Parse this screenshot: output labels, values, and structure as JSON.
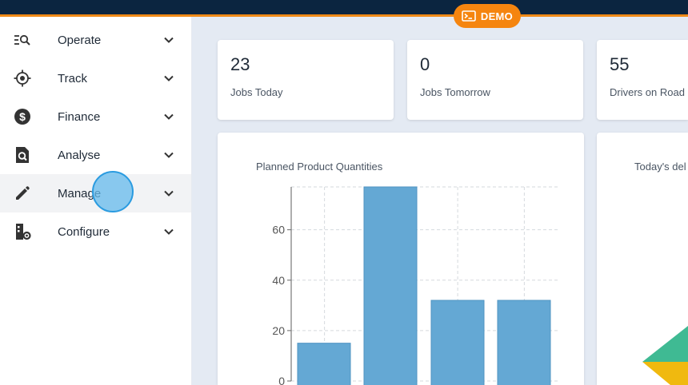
{
  "header": {
    "demo_label": "DEMO"
  },
  "sidebar": {
    "items": [
      {
        "label": "Operate",
        "icon": "operate-search-icon"
      },
      {
        "label": "Track",
        "icon": "crosshair-icon"
      },
      {
        "label": "Finance",
        "icon": "dollar-icon"
      },
      {
        "label": "Analyse",
        "icon": "analyse-icon"
      },
      {
        "label": "Manage",
        "icon": "pencil-icon"
      },
      {
        "label": "Configure",
        "icon": "configure-icon"
      }
    ],
    "active_item": "Manage"
  },
  "stats": [
    {
      "value": "23",
      "label": "Jobs Today"
    },
    {
      "value": "0",
      "label": "Jobs Tomorrow"
    },
    {
      "value": "55",
      "label": "Drivers on Road"
    }
  ],
  "pie_card": {
    "title": "Today's del"
  },
  "colors": {
    "bar": "#64a8d4",
    "accent": "#f5850f",
    "topbar": "#0b2540",
    "pie_green": "#3fba93",
    "pie_yellow": "#f0b90f"
  },
  "chart_data": {
    "type": "bar",
    "title": "Planned Product Quantities",
    "categories": [
      "",
      "",
      "",
      ""
    ],
    "values": [
      15,
      77,
      32,
      32
    ],
    "ylim": [
      0,
      77
    ],
    "yticks": [
      0,
      20,
      40,
      60
    ],
    "grid": true
  }
}
